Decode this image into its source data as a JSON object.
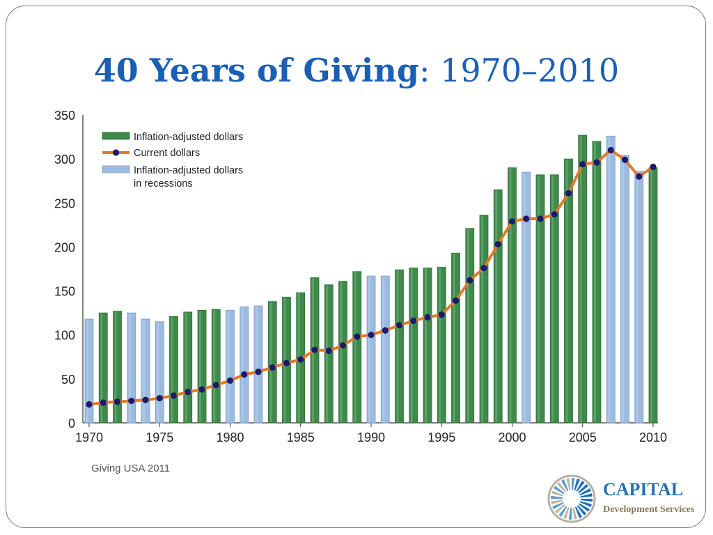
{
  "slide": {
    "title_main": "40 Years of Giving",
    "title_sep": ":",
    "title_years": "1970–2010",
    "source": "Giving USA 2011"
  },
  "logo": {
    "name": "CAPITAL",
    "subtitle": "Development Services",
    "icon": "sunburst-circle-logo"
  },
  "colors": {
    "title": "#1a5fb4",
    "bar_green": "#3e8a4a",
    "bar_blue": "#9bbbe0",
    "line": "#e07a2b",
    "marker": "#1a1a6e"
  },
  "chart_data": {
    "type": "bar",
    "title": "",
    "xlabel": "",
    "ylabel": "",
    "ylim": [
      0,
      350
    ],
    "yticks": [
      0,
      50,
      100,
      150,
      200,
      250,
      300,
      350
    ],
    "xticks": [
      1970,
      1975,
      1980,
      1985,
      1990,
      1995,
      2000,
      2005,
      2010
    ],
    "years": [
      1970,
      1971,
      1972,
      1973,
      1974,
      1975,
      1976,
      1977,
      1978,
      1979,
      1980,
      1981,
      1982,
      1983,
      1984,
      1985,
      1986,
      1987,
      1988,
      1989,
      1990,
      1991,
      1992,
      1993,
      1994,
      1995,
      1996,
      1997,
      1998,
      1999,
      2000,
      2001,
      2002,
      2003,
      2004,
      2005,
      2006,
      2007,
      2008,
      2009,
      2010
    ],
    "recession_years": [
      1970,
      1973,
      1974,
      1975,
      1980,
      1981,
      1982,
      1990,
      1991,
      2001,
      2007,
      2008,
      2009
    ],
    "legend_placement": "top-left",
    "series": [
      {
        "name": "Inflation-adjusted dollars",
        "kind": "bar",
        "values": [
          118,
          125,
          127,
          125,
          118,
          115,
          121,
          126,
          128,
          129,
          128,
          132,
          133,
          138,
          143,
          148,
          165,
          157,
          161,
          172,
          167,
          167,
          174,
          176,
          176,
          177,
          193,
          221,
          236,
          265,
          290,
          285,
          282,
          282,
          300,
          327,
          320,
          326,
          304,
          286,
          290
        ]
      },
      {
        "name": "Current dollars",
        "kind": "line",
        "values": [
          21,
          23,
          24,
          25,
          26,
          28,
          31,
          35,
          38,
          43,
          48,
          55,
          58,
          63,
          68,
          72,
          83,
          82,
          88,
          98,
          100,
          105,
          111,
          116,
          120,
          123,
          139,
          162,
          176,
          203,
          229,
          232,
          232,
          237,
          261,
          294,
          296,
          310,
          299,
          280,
          291
        ]
      },
      {
        "name": "Inflation-adjusted dollars in recessions",
        "name_lines": [
          "Inflation-adjusted dollars",
          "in recessions"
        ],
        "kind": "bar"
      }
    ]
  }
}
